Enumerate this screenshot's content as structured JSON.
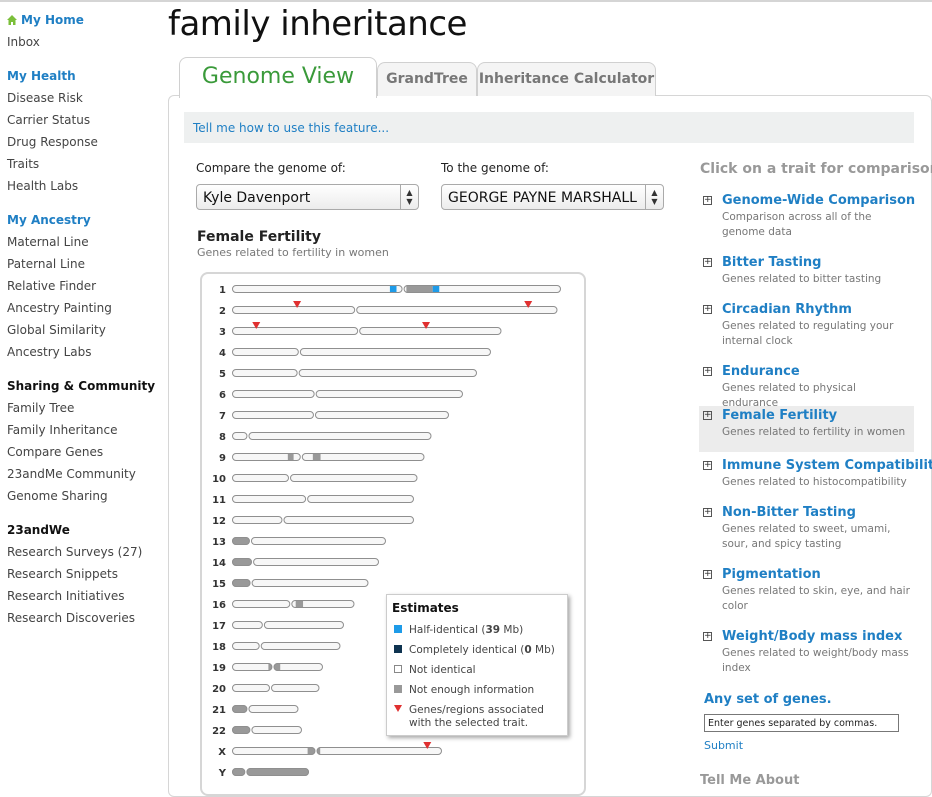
{
  "sidebar": {
    "sections": [
      {
        "title": "My Home",
        "style": "blue",
        "home_icon": "home-icon",
        "items": [
          "Inbox"
        ]
      },
      {
        "title": "My Health",
        "style": "blue",
        "items": [
          "Disease Risk",
          "Carrier Status",
          "Drug Response",
          "Traits",
          "Health Labs"
        ]
      },
      {
        "title": "My Ancestry",
        "style": "blue",
        "items": [
          "Maternal Line",
          "Paternal Line",
          "Relative Finder",
          "Ancestry Painting",
          "Global Similarity",
          "Ancestry Labs"
        ]
      },
      {
        "title": "Sharing & Community",
        "style": "black",
        "items": [
          "Family Tree",
          "Family Inheritance",
          "Compare Genes",
          "23andMe Community",
          "Genome Sharing"
        ]
      },
      {
        "title": "23andWe",
        "style": "black",
        "items": [
          "Research Surveys (27)",
          "Research Snippets",
          "Research Initiatives",
          "Research Discoveries"
        ]
      }
    ]
  },
  "page_title": "family inheritance",
  "tabs": [
    {
      "label": "Genome View",
      "active": true
    },
    {
      "label": "GrandTree",
      "active": false
    },
    {
      "label": "Inheritance Calculator",
      "active": false
    }
  ],
  "help_link": "Tell me how to use this feature...",
  "compare": {
    "label_a": "Compare the genome of:",
    "value_a": "Kyle Davenport",
    "label_b": "To the genome of:",
    "value_b": "GEORGE PAYNE MARSHALL"
  },
  "trait": {
    "title": "Female Fertility",
    "subtitle": "Genes related to fertility in women"
  },
  "colors": {
    "half_identical": "#1e9be8",
    "completely_identical": "#0e3350",
    "not_enough_info": "#999999",
    "trait_marker": "#e03030",
    "link": "#1f7fc4"
  },
  "chromosomes": [
    {
      "label": "1",
      "length": 0.94,
      "centromere": 0.52,
      "half_identical": [
        [
          0.48,
          0.5
        ],
        [
          0.61,
          0.63
        ]
      ],
      "no_info": [
        [
          0.53,
          0.61
        ]
      ],
      "markers": []
    },
    {
      "label": "2",
      "length": 0.93,
      "centromere": 0.38,
      "half_identical": [],
      "no_info": [],
      "markers": [
        0.2,
        0.91
      ]
    },
    {
      "label": "3",
      "length": 0.77,
      "centromere": 0.47,
      "half_identical": [],
      "no_info": [],
      "markers": [
        0.09,
        0.72
      ]
    },
    {
      "label": "4",
      "length": 0.74,
      "centromere": 0.26,
      "half_identical": [],
      "no_info": [],
      "markers": []
    },
    {
      "label": "5",
      "length": 0.7,
      "centromere": 0.27,
      "half_identical": [],
      "no_info": [],
      "markers": []
    },
    {
      "label": "6",
      "length": 0.66,
      "centromere": 0.36,
      "half_identical": [],
      "no_info": [],
      "markers": []
    },
    {
      "label": "7",
      "length": 0.62,
      "centromere": 0.38,
      "half_identical": [],
      "no_info": [],
      "markers": []
    },
    {
      "label": "8",
      "length": 0.57,
      "centromere": 0.08,
      "half_identical": [],
      "no_info": [],
      "markers": []
    },
    {
      "label": "9",
      "length": 0.55,
      "centromere": 0.36,
      "half_identical": [],
      "no_info": [
        [
          0.29,
          0.32
        ],
        [
          0.42,
          0.46
        ]
      ],
      "markers": []
    },
    {
      "label": "10",
      "length": 0.53,
      "centromere": 0.31,
      "half_identical": [],
      "no_info": [],
      "markers": []
    },
    {
      "label": "11",
      "length": 0.52,
      "centromere": 0.41,
      "half_identical": [],
      "no_info": [],
      "markers": []
    },
    {
      "label": "12",
      "length": 0.52,
      "centromere": 0.28,
      "half_identical": [],
      "no_info": [],
      "markers": []
    },
    {
      "label": "13",
      "length": 0.44,
      "centromere": 0.12,
      "half_identical": [],
      "no_info": [
        [
          0.0,
          0.12
        ]
      ],
      "markers": []
    },
    {
      "label": "14",
      "length": 0.42,
      "centromere": 0.14,
      "half_identical": [],
      "no_info": [
        [
          0.0,
          0.13
        ]
      ],
      "markers": []
    },
    {
      "label": "15",
      "length": 0.39,
      "centromere": 0.14,
      "half_identical": [],
      "no_info": [
        [
          0.0,
          0.14
        ]
      ],
      "markers": []
    },
    {
      "label": "16",
      "length": 0.35,
      "centromere": 0.48,
      "half_identical": [],
      "no_info": [
        [
          0.52,
          0.58
        ]
      ],
      "markers": []
    },
    {
      "label": "17",
      "length": 0.32,
      "centromere": 0.28,
      "half_identical": [],
      "no_info": [],
      "markers": []
    },
    {
      "label": "18",
      "length": 0.31,
      "centromere": 0.26,
      "half_identical": [],
      "no_info": [],
      "markers": []
    },
    {
      "label": "19",
      "length": 0.26,
      "centromere": 0.45,
      "half_identical": [],
      "no_info": [
        [
          0.4,
          0.53
        ]
      ],
      "markers": []
    },
    {
      "label": "20",
      "length": 0.25,
      "centromere": 0.44,
      "half_identical": [],
      "no_info": [],
      "markers": []
    },
    {
      "label": "21",
      "length": 0.19,
      "centromere": 0.24,
      "half_identical": [],
      "no_info": [
        [
          0.0,
          0.24
        ]
      ],
      "markers": []
    },
    {
      "label": "22",
      "length": 0.2,
      "centromere": 0.27,
      "half_identical": [],
      "no_info": [
        [
          0.0,
          0.27
        ]
      ],
      "markers": []
    },
    {
      "label": "X",
      "length": 0.6,
      "centromere": 0.4,
      "half_identical": [],
      "no_info": [
        [
          0.36,
          0.42
        ]
      ],
      "markers": [
        0.93
      ]
    },
    {
      "label": "Y",
      "length": 0.22,
      "centromere": 0.18,
      "half_identical": [],
      "no_info": [
        [
          0.0,
          1.0
        ]
      ],
      "markers": []
    }
  ],
  "legend": {
    "title": "Estimates",
    "items": [
      {
        "key": "half",
        "pre": "Half-identical (",
        "bold": "39",
        "post": " Mb)"
      },
      {
        "key": "complete",
        "pre": "Completely identical (",
        "bold": "0",
        "post": " Mb)"
      },
      {
        "key": "none",
        "pre": "Not identical",
        "bold": "",
        "post": ""
      },
      {
        "key": "noinfo",
        "pre": "Not enough information",
        "bold": "",
        "post": ""
      },
      {
        "key": "marker",
        "pre": "Genes/regions associated with the selected trait.",
        "bold": "",
        "post": ""
      }
    ]
  },
  "right": {
    "heading": "Click on a trait for comparison:",
    "traits": [
      {
        "name": "Genome-Wide Comparison",
        "desc": "Comparison across all of the genome data",
        "active": false
      },
      {
        "name": "Bitter Tasting",
        "desc": "Genes related to bitter tasting",
        "active": false
      },
      {
        "name": "Circadian Rhythm",
        "desc": "Genes related to regulating your internal clock",
        "active": false
      },
      {
        "name": "Endurance",
        "desc": "Genes related to physical endurance",
        "active": false
      },
      {
        "name": "Female Fertility",
        "desc": "Genes related to fertility in women",
        "active": true
      },
      {
        "name": "Immune System Compatibility",
        "desc": "Genes related to histocompatibility",
        "active": false
      },
      {
        "name": "Non-Bitter Tasting",
        "desc": "Genes related to sweet, umami, sour, and spicy tasting",
        "active": false
      },
      {
        "name": "Pigmentation",
        "desc": "Genes related to skin, eye, and hair color",
        "active": false
      },
      {
        "name": "Weight/Body mass index",
        "desc": "Genes related to weight/body mass index",
        "active": false
      }
    ],
    "any_set": "Any set of genes.",
    "input_placeholder": "Enter genes separated by commas.",
    "submit": "Submit",
    "tell_me": "Tell Me About"
  }
}
